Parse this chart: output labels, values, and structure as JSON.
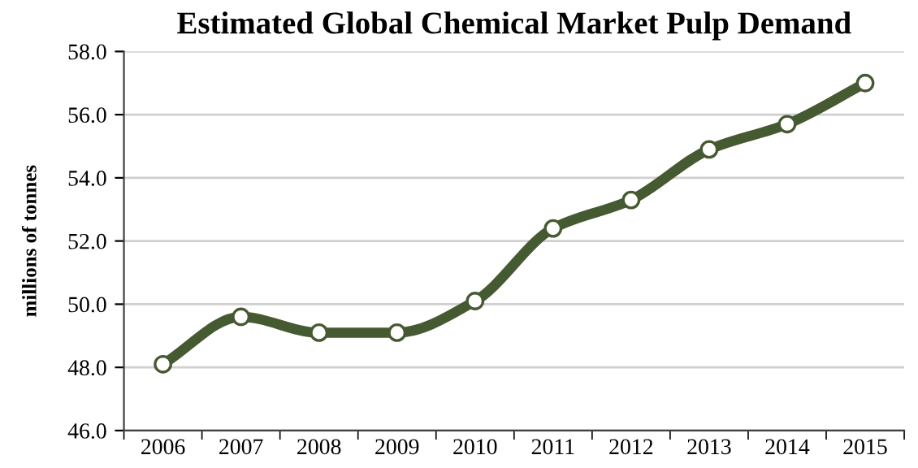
{
  "chart_data": {
    "type": "line",
    "title": "Estimated Global Chemical Market Pulp Demand",
    "ylabel": "millions of tonnes",
    "categories": [
      "2006",
      "2007",
      "2008",
      "2009",
      "2010",
      "2011",
      "2012",
      "2013",
      "2014",
      "2015"
    ],
    "series": [
      {
        "color": "#465a32",
        "values": [
          48.1,
          49.6,
          49.1,
          49.1,
          50.1,
          52.4,
          53.3,
          54.9,
          55.7,
          57.0
        ]
      }
    ],
    "ylim": [
      46,
      58
    ],
    "yticks": [
      {
        "value": 46,
        "label": "46.0"
      },
      {
        "value": 48,
        "label": "48.0"
      },
      {
        "value": 50,
        "label": "50.0"
      },
      {
        "value": 52,
        "label": "52.0"
      },
      {
        "value": 54,
        "label": "54.0"
      },
      {
        "value": 56,
        "label": "56.0"
      },
      {
        "value": 58,
        "label": "58.0"
      }
    ],
    "grid": "y",
    "marker": "circle",
    "line_style": "solid"
  }
}
